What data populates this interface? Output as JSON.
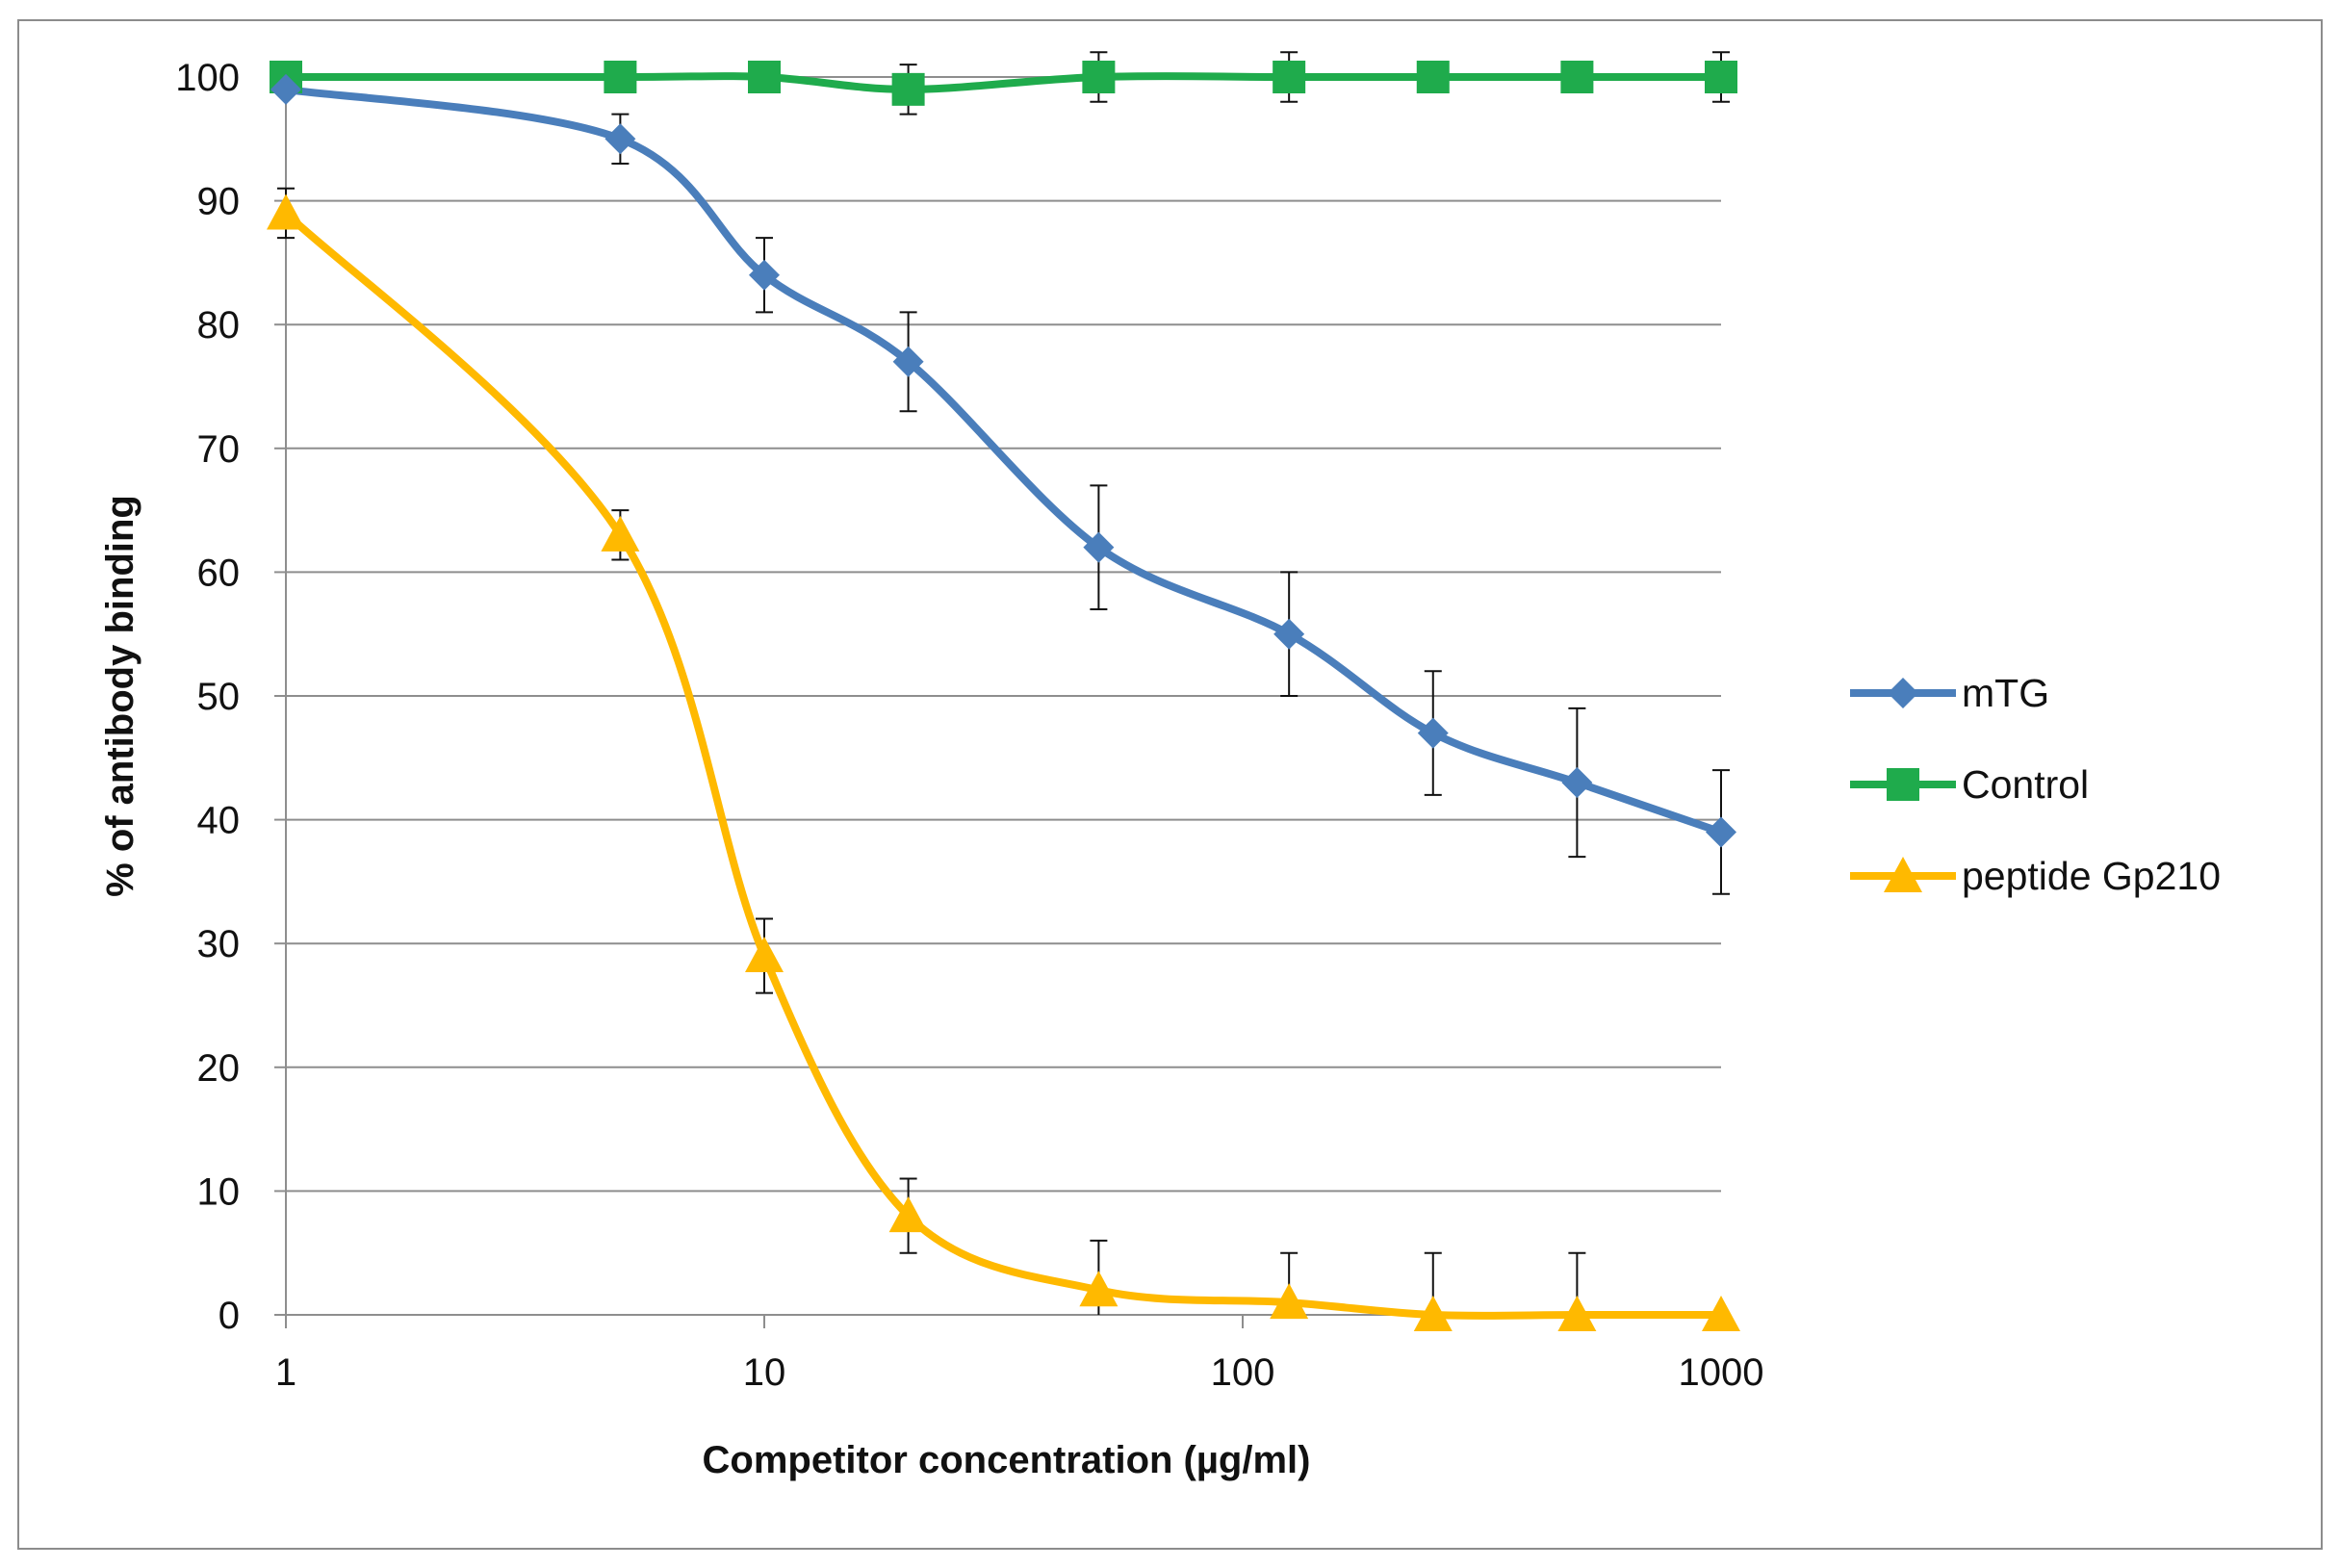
{
  "chart_data": {
    "type": "line",
    "x_scale": "log",
    "xlabel": "Competitor concentration (µg/ml)",
    "ylabel": "% of antibody binding",
    "xlim": [
      1,
      1000
    ],
    "ylim": [
      0,
      100
    ],
    "x_ticks": [
      1,
      10,
      100,
      1000
    ],
    "x_tick_labels": [
      "1",
      "10",
      "100",
      "1000"
    ],
    "y_ticks": [
      0,
      10,
      20,
      30,
      40,
      50,
      60,
      70,
      80,
      90,
      100
    ],
    "y_tick_labels": [
      "0",
      "10",
      "20",
      "30",
      "40",
      "50",
      "60",
      "70",
      "80",
      "90",
      "100"
    ],
    "grid": "horizontal",
    "legend_position": "right",
    "x": [
      1,
      5,
      10,
      20,
      50,
      125,
      250,
      500,
      1000
    ],
    "series": [
      {
        "name": "mTG",
        "marker": "diamond",
        "color": "#4a7ebb",
        "values": [
          99,
          95,
          84,
          77,
          62,
          55,
          47,
          43,
          39
        ],
        "error": [
          0,
          2,
          3,
          4,
          5,
          5,
          5,
          6,
          5
        ]
      },
      {
        "name": "Control",
        "marker": "square",
        "color": "#1fab4c",
        "values": [
          100,
          100,
          100,
          99,
          100,
          100,
          100,
          100,
          100
        ],
        "error": [
          0,
          0,
          0,
          2,
          2,
          2,
          0,
          0,
          2
        ]
      },
      {
        "name": "peptide Gp210",
        "marker": "triangle",
        "color": "#ffb900",
        "values": [
          89,
          63,
          29,
          8,
          2,
          1,
          0,
          0,
          0
        ],
        "error": [
          2,
          2,
          3,
          3,
          4,
          4,
          5,
          5,
          0
        ]
      }
    ]
  }
}
